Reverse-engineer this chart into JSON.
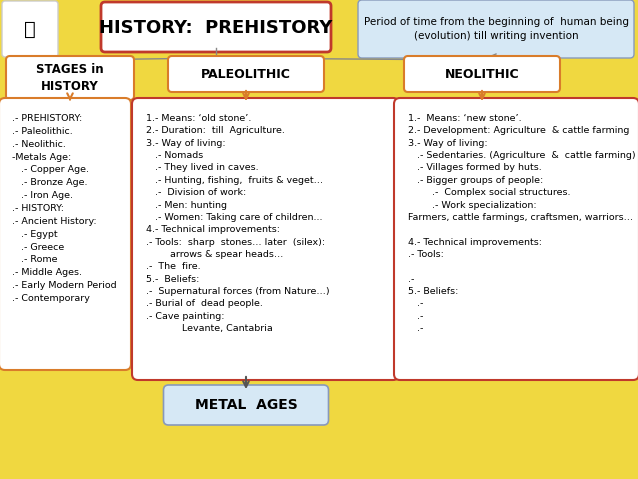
{
  "bg_color": "#f0d840",
  "title": "HISTORY:  PREHISTORY",
  "subtitle": "Period of time from the beginning of  human being\n(evolution) till writing invention",
  "stages_header": "STAGES in\nHISTORY",
  "paleo_header": "PALEOLITHIC",
  "neo_header": "NEOLITHIC",
  "metal_ages": "METAL  AGES",
  "stages_text": ".- PREHISTORY:\n.- Paleolithic.\n.- Neolithic.\n-Metals Age:\n   .- Copper Age.\n   .- Bronze Age.\n   .- Iron Age.\n.- HISTORY:\n.- Ancient History:\n   .- Egypt\n   .- Greece\n   .- Rome\n.- Middle Ages.\n.- Early Modern Period\n.- Contemporary",
  "paleo_text": "1.- Means: ‘old stone’.\n2.- Duration:  till  Agriculture.\n3.- Way of living:\n   .- Nomads\n   .- They lived in caves.\n   .- Hunting, fishing,  fruits & veget…\n   .-  Division of work:\n   .- Men: hunting\n   .- Women: Taking care of children...\n4.- Technical improvements:\n.- Tools:  sharp  stones… later  (silex):\n        arrows & spear heads…\n.-  The  fire.\n5.-  Beliefs:\n.-  Supernatural forces (from Nature…)\n.- Burial of  dead people.\n.- Cave painting:\n            Levante, Cantabria",
  "neo_text": "1.-  Means: ‘new stone’.\n2.- Development: Agriculture  & cattle farming\n3.- Way of living:\n   .- Sedentaries. (Agriculture  &  cattle farming)\n   .- Villages formed by huts.\n   .- Bigger groups of people:\n        .-  Complex social structures.\n        .- Work specialization:\nFarmers, cattle farmings, craftsmen, warriors…\n\n4.- Technical improvements:\n.- Tools:\n\n.-\n5.- Beliefs:\n   .-\n   .-\n   .-",
  "logo_text": "",
  "title_fill": "#ffffff",
  "title_edge": "#c0392b",
  "subtitle_fill": "#d6e8f5",
  "subtitle_edge": "#8899bb",
  "header_fill": "#ffffff",
  "header_edge": "#d97c2a",
  "body_fill": "#ffffff",
  "body_edge": "#d97c2a",
  "paleo_edge": "#c0392b",
  "neo_edge": "#c0392b",
  "metal_fill": "#d6e8f5",
  "metal_edge": "#8899bb",
  "line_color": "#888888",
  "arrow_color": "#d97c2a"
}
